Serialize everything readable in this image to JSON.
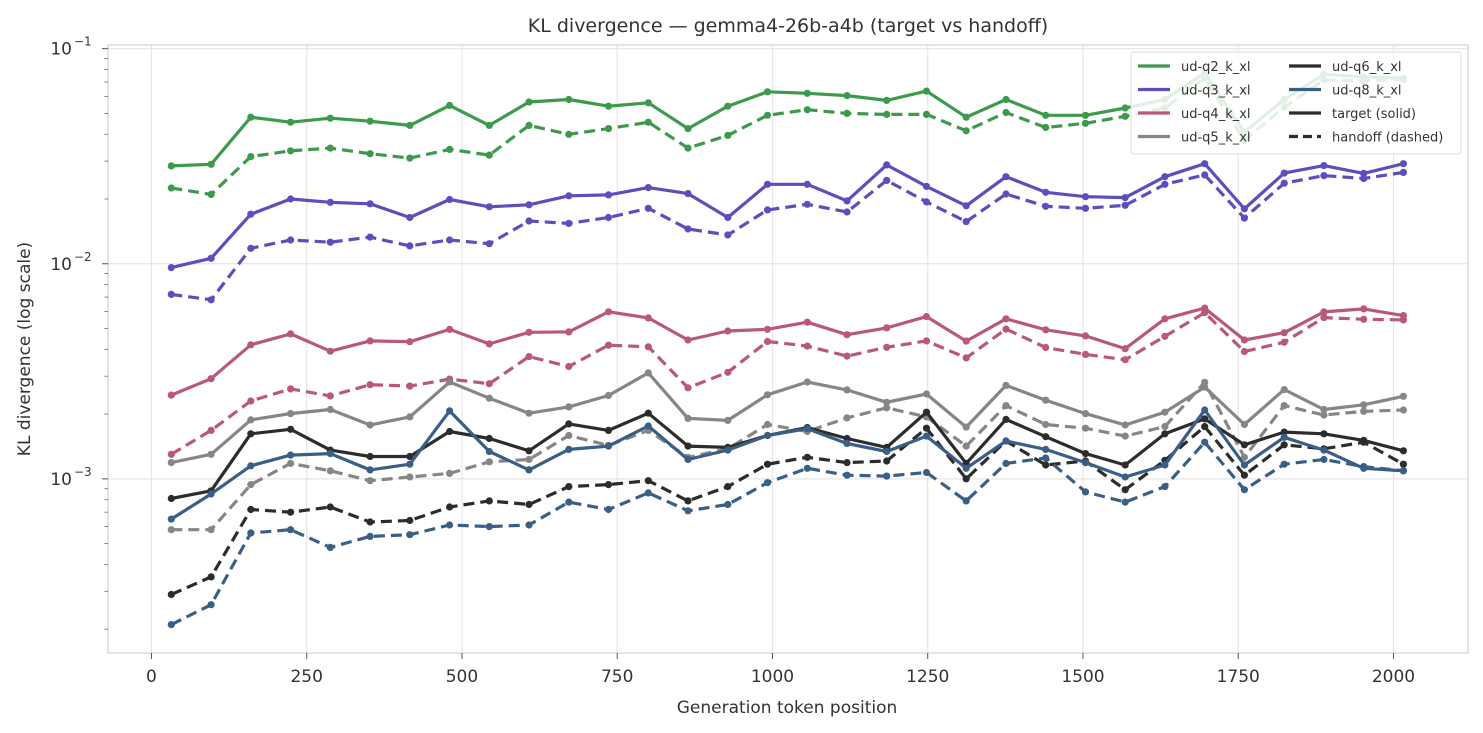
{
  "chart_data": {
    "type": "line",
    "title": "KL divergence — gemma4-26b-a4b (target vs handoff)",
    "xlabel": "Generation token position",
    "ylabel": "KL divergence (log scale)",
    "yscale": "log",
    "xlim": [
      -70,
      2120
    ],
    "ylim": [
      0.000155,
      0.104
    ],
    "x_ticks": [
      0,
      250,
      500,
      750,
      1000,
      1250,
      1500,
      1750,
      2000
    ],
    "x_tick_labels": [
      "0",
      "250",
      "500",
      "750",
      "1000",
      "1250",
      "1500",
      "1750",
      "2000"
    ],
    "y_major_ticks": [
      0.001,
      0.01,
      0.1
    ],
    "y_tick_labels": [
      {
        "base": "10",
        "exp": "−3"
      },
      {
        "base": "10",
        "exp": "−2"
      },
      {
        "base": "10",
        "exp": "−1"
      }
    ],
    "grid": true,
    "legend_position": "top-right",
    "x": [
      32,
      96,
      160,
      224,
      288,
      352,
      416,
      480,
      544,
      608,
      672,
      736,
      800,
      864,
      928,
      992,
      1056,
      1120,
      1184,
      1248,
      1312,
      1376,
      1440,
      1504,
      1568,
      1632,
      1696,
      1760,
      1824,
      1888,
      1952,
      2016
    ],
    "series": [
      {
        "name": "ud-q2_k_xl",
        "color": "#3d9a4d",
        "target": [
          0.0285,
          0.029,
          0.048,
          0.0455,
          0.0475,
          0.046,
          0.044,
          0.0545,
          0.044,
          0.0565,
          0.058,
          0.054,
          0.056,
          0.0425,
          0.054,
          0.063,
          0.062,
          0.0605,
          0.0575,
          0.0635,
          0.048,
          0.058,
          0.049,
          0.049,
          0.053,
          0.058,
          0.077,
          0.041,
          0.058,
          0.076,
          0.074,
          0.073
        ],
        "handoff": [
          0.0225,
          0.021,
          0.0315,
          0.0335,
          0.0345,
          0.0325,
          0.031,
          0.034,
          0.032,
          0.044,
          0.04,
          0.0425,
          0.0455,
          0.0345,
          0.0395,
          0.049,
          0.052,
          0.05,
          0.0495,
          0.0495,
          0.0415,
          0.0505,
          0.043,
          0.045,
          0.0485,
          0.053,
          0.073,
          0.0375,
          0.0535,
          0.0715,
          0.071,
          0.072
        ]
      },
      {
        "name": "ud-q3_k_xl",
        "color": "#5a4fbd",
        "target": [
          0.0096,
          0.0106,
          0.017,
          0.02,
          0.0193,
          0.019,
          0.0164,
          0.0199,
          0.0184,
          0.0188,
          0.0207,
          0.0209,
          0.0226,
          0.0212,
          0.0164,
          0.0234,
          0.0234,
          0.0196,
          0.0288,
          0.0229,
          0.0186,
          0.0254,
          0.0215,
          0.0205,
          0.0203,
          0.0254,
          0.0292,
          0.018,
          0.0264,
          0.0286,
          0.0263,
          0.0292
        ],
        "handoff": [
          0.0072,
          0.0068,
          0.0118,
          0.0129,
          0.0126,
          0.0133,
          0.0121,
          0.0129,
          0.0124,
          0.0158,
          0.0154,
          0.0164,
          0.0181,
          0.0145,
          0.0136,
          0.0178,
          0.0189,
          0.0174,
          0.0244,
          0.0194,
          0.0157,
          0.0211,
          0.0185,
          0.0181,
          0.0187,
          0.0234,
          0.0259,
          0.0163,
          0.0237,
          0.0257,
          0.0249,
          0.0266
        ]
      },
      {
        "name": "ud-q4_k_xl",
        "color": "#b9587a",
        "target": [
          0.00245,
          0.00292,
          0.0042,
          0.00472,
          0.00392,
          0.00438,
          0.00434,
          0.00495,
          0.00424,
          0.0048,
          0.00482,
          0.00598,
          0.0056,
          0.00442,
          0.00487,
          0.00496,
          0.00535,
          0.00468,
          0.00503,
          0.00568,
          0.00437,
          0.00555,
          0.00493,
          0.00462,
          0.00403,
          0.00555,
          0.00622,
          0.00442,
          0.00478,
          0.00597,
          0.00617,
          0.00574
        ],
        "handoff": [
          0.0013,
          0.00168,
          0.0023,
          0.00262,
          0.00243,
          0.00274,
          0.0027,
          0.00291,
          0.00277,
          0.0037,
          0.00333,
          0.00418,
          0.00411,
          0.00265,
          0.00313,
          0.00435,
          0.00414,
          0.00372,
          0.00409,
          0.00438,
          0.00365,
          0.00497,
          0.00408,
          0.00379,
          0.00358,
          0.0046,
          0.00592,
          0.00391,
          0.00432,
          0.00562,
          0.00552,
          0.00548
        ]
      },
      {
        "name": "ud-q5_k_xl",
        "color": "#868686",
        "target": [
          0.00119,
          0.0013,
          0.00188,
          0.00201,
          0.0021,
          0.00178,
          0.00194,
          0.00282,
          0.00237,
          0.00202,
          0.00216,
          0.00244,
          0.00311,
          0.00191,
          0.00187,
          0.00246,
          0.00282,
          0.00259,
          0.00227,
          0.00248,
          0.00174,
          0.00272,
          0.00232,
          0.00201,
          0.00178,
          0.00204,
          0.00267,
          0.00179,
          0.0026,
          0.0021,
          0.00221,
          0.00242
        ],
        "handoff": [
          0.00058,
          0.00058,
          0.00094,
          0.00118,
          0.00109,
          0.00098,
          0.00102,
          0.00106,
          0.0012,
          0.00123,
          0.00159,
          0.00143,
          0.00168,
          0.00126,
          0.00138,
          0.00179,
          0.00166,
          0.00192,
          0.00214,
          0.00194,
          0.00142,
          0.00219,
          0.00179,
          0.00172,
          0.00158,
          0.00175,
          0.00281,
          0.00126,
          0.00219,
          0.00198,
          0.00206,
          0.00209
        ]
      },
      {
        "name": "ud-q6_k_xl",
        "color": "#2c2c2c",
        "target": [
          0.00081,
          0.00088,
          0.00162,
          0.0017,
          0.00136,
          0.00127,
          0.00127,
          0.00166,
          0.00154,
          0.00135,
          0.0018,
          0.00168,
          0.00202,
          0.00142,
          0.0014,
          0.00159,
          0.00173,
          0.00154,
          0.0014,
          0.00204,
          0.00118,
          0.00189,
          0.00157,
          0.00131,
          0.00116,
          0.00162,
          0.0019,
          0.00144,
          0.00165,
          0.00162,
          0.00151,
          0.00135
        ],
        "handoff": [
          0.00029,
          0.00035,
          0.00072,
          0.0007,
          0.00074,
          0.00063,
          0.00064,
          0.00074,
          0.00079,
          0.00076,
          0.00092,
          0.00094,
          0.00098,
          0.00079,
          0.00092,
          0.00117,
          0.00126,
          0.00119,
          0.00121,
          0.00172,
          0.001,
          0.0015,
          0.00116,
          0.00121,
          0.00089,
          0.00122,
          0.00175,
          0.00104,
          0.00144,
          0.00138,
          0.00148,
          0.00117
        ]
      },
      {
        "name": "ud-q8_k_xl",
        "color": "#3a5f87",
        "target": [
          0.00065,
          0.00085,
          0.00115,
          0.00129,
          0.00131,
          0.0011,
          0.00117,
          0.00207,
          0.00134,
          0.0011,
          0.00137,
          0.00142,
          0.00176,
          0.00123,
          0.00136,
          0.00159,
          0.00171,
          0.00146,
          0.00134,
          0.00158,
          0.00112,
          0.0015,
          0.00137,
          0.00119,
          0.00102,
          0.00116,
          0.00209,
          0.00116,
          0.00156,
          0.00136,
          0.00112,
          0.00109
        ],
        "handoff": [
          0.00021,
          0.00026,
          0.00056,
          0.00058,
          0.00048,
          0.00054,
          0.00055,
          0.00061,
          0.0006,
          0.00061,
          0.00078,
          0.00072,
          0.00086,
          0.00071,
          0.00076,
          0.00096,
          0.00112,
          0.00104,
          0.00103,
          0.00107,
          0.00079,
          0.00118,
          0.00125,
          0.00087,
          0.00078,
          0.00092,
          0.00148,
          0.00089,
          0.00117,
          0.00123,
          0.00114,
          0.00109
        ]
      }
    ],
    "legend": [
      {
        "label": "ud-q2_k_xl",
        "color": "#3d9a4d",
        "style": "solid"
      },
      {
        "label": "ud-q6_k_xl",
        "color": "#2c2c2c",
        "style": "solid"
      },
      {
        "label": "ud-q3_k_xl",
        "color": "#5a4fbd",
        "style": "solid"
      },
      {
        "label": "ud-q8_k_xl",
        "color": "#3a5f87",
        "style": "solid"
      },
      {
        "label": "ud-q4_k_xl",
        "color": "#b9587a",
        "style": "solid"
      },
      {
        "label": "target (solid)",
        "color": "#2c2c2c",
        "style": "solid"
      },
      {
        "label": "ud-q5_k_xl",
        "color": "#868686",
        "style": "solid"
      },
      {
        "label": "handoff (dashed)",
        "color": "#2c2c2c",
        "style": "dashed"
      }
    ]
  }
}
